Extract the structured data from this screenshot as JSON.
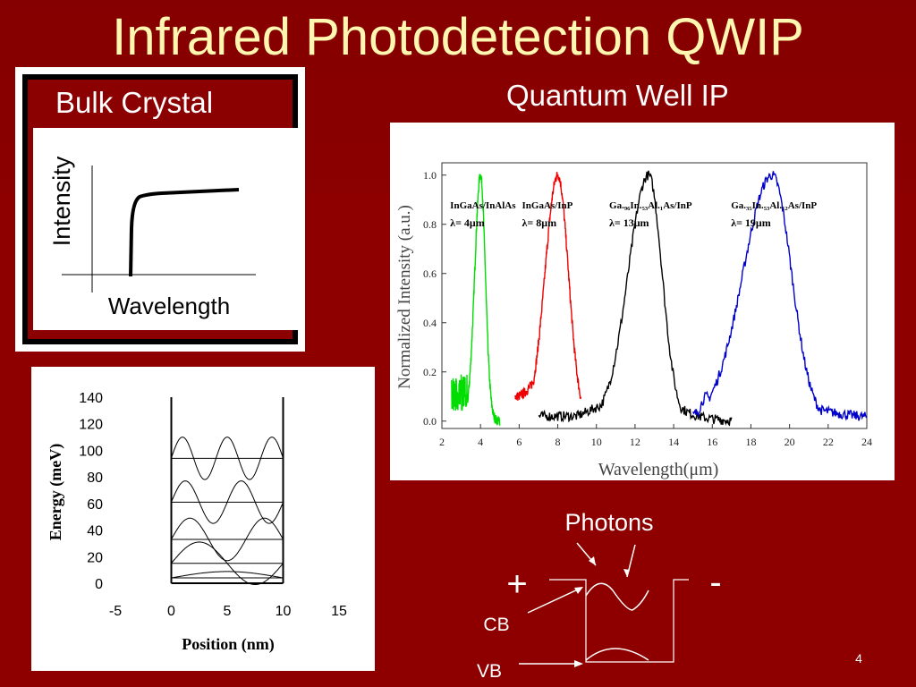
{
  "slide": {
    "title": "Infrared Photodetection QWIP",
    "number": "4",
    "colors": {
      "background": "#8b0000",
      "title": "#fff6b0"
    }
  },
  "bulk": {
    "title": "Bulk Crystal",
    "ylabel": "Intensity",
    "xlabel": "Wavelength"
  },
  "qwip": {
    "title": "Quantum Well IP"
  },
  "band_diagram": {
    "photons_label": "Photons",
    "plus_label": "+",
    "minus_label": "-",
    "cb_label": "CB",
    "vb_label": "VB"
  },
  "chart_data": [
    {
      "type": "line",
      "title": "",
      "xlabel": "Wavelength(μm)",
      "ylabel": "Normalized Intensity (a.u.)",
      "xlim": [
        2,
        24
      ],
      "ylim": [
        -0.03,
        1.05
      ],
      "xticks": [
        2,
        4,
        6,
        8,
        10,
        12,
        14,
        16,
        18,
        20,
        22,
        24
      ],
      "yticks": [
        "0.0",
        "0.2",
        "0.4",
        "0.6",
        "0.8",
        "1.0"
      ],
      "grid": false,
      "series": [
        {
          "name": "InGaAs/InAlAs",
          "annotation": "λ= 4μm",
          "color": "#00dd00",
          "peak": 4,
          "xrange": [
            2.5,
            5
          ],
          "noise_left": true
        },
        {
          "name": "InGaAs/InP",
          "annotation": "λ= 8μm",
          "color": "#ee0000",
          "peak": 8,
          "xrange": [
            5.8,
            9.2
          ]
        },
        {
          "name": "Ga.₉₆In.₅₃Al.₁As/InP",
          "annotation": "λ= 13μm",
          "color": "#000000",
          "peak": 12.7,
          "xrange": [
            7,
            17
          ]
        },
        {
          "name": "Ga.₃₅In.₅₃Al.₁₂As/InP",
          "annotation": "λ= 19μm",
          "color": "#0000cc",
          "peak": 19.1,
          "xrange": [
            15,
            24
          ]
        }
      ]
    },
    {
      "type": "line",
      "title": "",
      "xlabel": "Position (nm)",
      "ylabel": "Energy (meV)",
      "xlim": [
        -5,
        15
      ],
      "ylim": [
        0,
        140
      ],
      "xticks": [
        "-5",
        "0",
        "5",
        "10",
        "15"
      ],
      "yticks": [
        "0",
        "20",
        "40",
        "60",
        "80",
        "100",
        "120",
        "140"
      ],
      "grid": false,
      "well": {
        "left": 0,
        "right": 10
      },
      "levels": [
        4,
        15,
        33,
        61,
        94
      ],
      "amplitude": 16
    }
  ]
}
